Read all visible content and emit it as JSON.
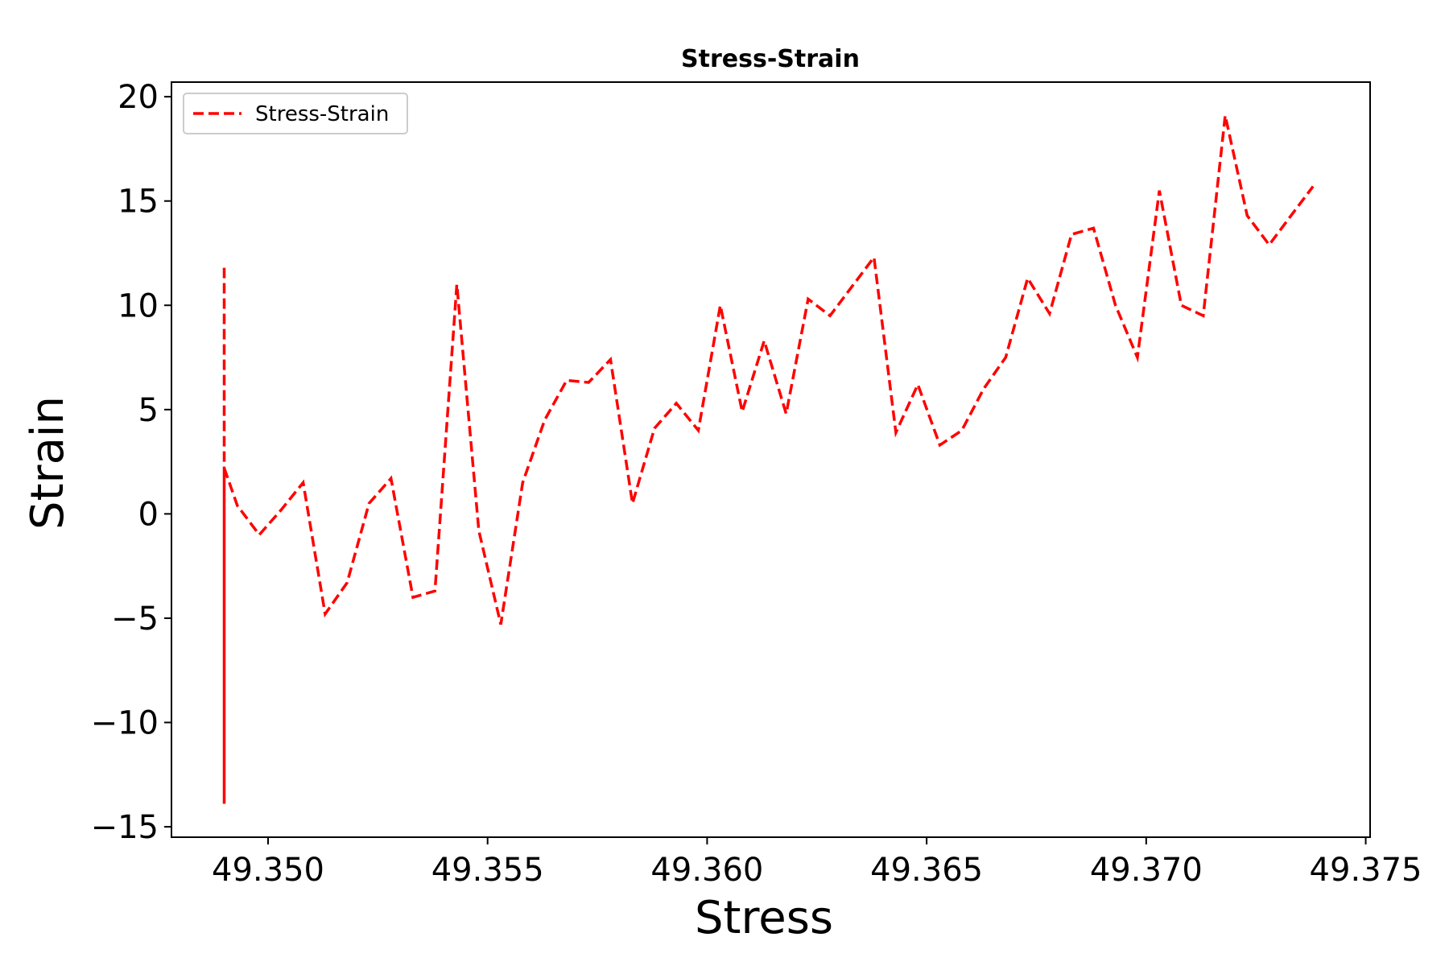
{
  "chart_data": {
    "type": "line",
    "title": "Stress-Strain",
    "xlabel": "Stress",
    "ylabel": "Strain",
    "xlim": [
      49.3478,
      49.3751
    ],
    "ylim": [
      -15.5,
      20.7
    ],
    "xticks": [
      49.35,
      49.355,
      49.36,
      49.365,
      49.37,
      49.375
    ],
    "xtick_labels": [
      "49.350",
      "49.355",
      "49.360",
      "49.365",
      "49.370",
      "49.375"
    ],
    "yticks": [
      -15,
      -10,
      -5,
      0,
      5,
      10,
      15,
      20
    ],
    "ytick_labels": [
      "−15",
      "−10",
      "−5",
      "0",
      "5",
      "10",
      "15",
      "20"
    ],
    "grid": false,
    "legend": {
      "position": "top-left",
      "entries": [
        "Stress-Strain"
      ]
    },
    "series": [
      {
        "name": "Stress-Strain",
        "color": "#ff0000",
        "style": "dashed",
        "x": [
          49.349,
          49.349,
          49.349,
          49.3493,
          49.3498,
          49.3503,
          49.3508,
          49.3513,
          49.3518,
          49.3523,
          49.3528,
          49.3533,
          49.3538,
          49.3543,
          49.3548,
          49.3553,
          49.3558,
          49.3563,
          49.3568,
          49.3573,
          49.3578,
          49.3583,
          49.3588,
          49.3593,
          49.3598,
          49.3603,
          49.3608,
          49.3613,
          49.3618,
          49.3623,
          49.3628,
          49.3633,
          49.3638,
          49.3643,
          49.3648,
          49.3653,
          49.3658,
          49.3663,
          49.3668,
          49.3673,
          49.3678,
          49.3683,
          49.3688,
          49.3693,
          49.3698,
          49.3703,
          49.3708,
          49.3713,
          49.3718,
          49.3723,
          49.3728,
          49.3733,
          49.3738
        ],
        "y": [
          11.8,
          -13.9,
          2.2,
          0.4,
          -1.0,
          0.2,
          1.5,
          -4.8,
          -3.3,
          0.5,
          1.7,
          -4.0,
          -3.7,
          11.0,
          -0.8,
          -5.3,
          1.5,
          4.5,
          6.4,
          6.3,
          7.4,
          0.5,
          4.1,
          5.3,
          4.0,
          10.0,
          4.9,
          8.3,
          4.8,
          10.3,
          9.5,
          10.9,
          12.3,
          3.9,
          6.2,
          3.3,
          4.0,
          6.0,
          7.5,
          11.3,
          9.6,
          13.4,
          13.7,
          10.0,
          7.5,
          15.5,
          10.0,
          9.5,
          19.1,
          14.3,
          12.9,
          14.3,
          15.7
        ]
      }
    ]
  }
}
